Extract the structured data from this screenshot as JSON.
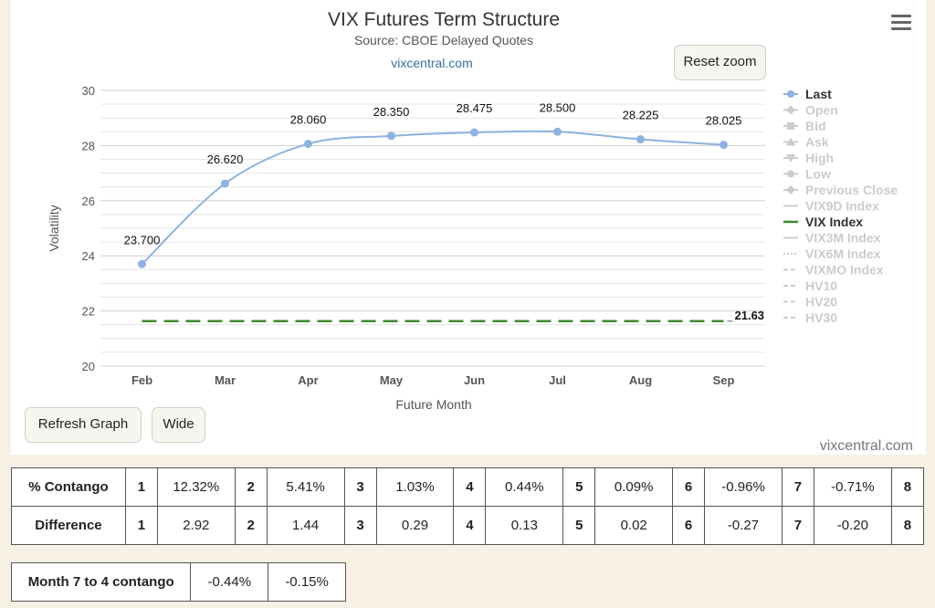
{
  "chart_data": {
    "type": "line",
    "title": "VIX Futures Term Structure",
    "subtitle": "Source: CBOE Delayed Quotes",
    "link": "vixcentral.com",
    "watermark": "vixcentral.com",
    "xlabel": "Future Month",
    "ylabel": "Volatility",
    "categories": [
      "Feb",
      "Mar",
      "Apr",
      "May",
      "Jun",
      "Jul",
      "Aug",
      "Sep"
    ],
    "ylim": [
      20,
      30
    ],
    "yticks": [
      "30",
      "28",
      "26",
      "24",
      "22",
      "20"
    ],
    "grid": true,
    "legend_position": "right",
    "series": [
      {
        "name": "Last",
        "values": [
          23.7,
          26.62,
          28.06,
          28.35,
          28.475,
          28.5,
          28.225,
          28.025
        ],
        "labels": [
          "23.700",
          "26.620",
          "28.060",
          "28.350",
          "28.475",
          "28.500",
          "28.225",
          "28.025"
        ],
        "color": "#8db3e0",
        "visible": true
      },
      {
        "name": "VIX Index",
        "values": [
          21.63,
          21.63,
          21.63,
          21.63,
          21.63,
          21.63,
          21.63,
          21.63
        ],
        "end_label": "21.63",
        "color": "#3e8a2e",
        "dash": "dashed",
        "visible": true
      }
    ],
    "legend": [
      {
        "name": "Last",
        "symbol": "circle",
        "active": true
      },
      {
        "name": "Open",
        "symbol": "diamond",
        "active": false
      },
      {
        "name": "Bid",
        "symbol": "square",
        "active": false
      },
      {
        "name": "Ask",
        "symbol": "triangle",
        "active": false
      },
      {
        "name": "High",
        "symbol": "triangle-down",
        "active": false
      },
      {
        "name": "Low",
        "symbol": "circle",
        "active": false
      },
      {
        "name": "Previous Close",
        "symbol": "diamond",
        "active": false
      },
      {
        "name": "VIX9D Index",
        "symbol": "solid",
        "active": false
      },
      {
        "name": "VIX Index",
        "symbol": "solid",
        "active": true
      },
      {
        "name": "VIX3M Index",
        "symbol": "solid",
        "active": false
      },
      {
        "name": "VIX6M Index",
        "symbol": "dotted",
        "active": false
      },
      {
        "name": "VIXMO Index",
        "symbol": "dashed",
        "active": false
      },
      {
        "name": "HV10",
        "symbol": "dashed",
        "active": false
      },
      {
        "name": "HV20",
        "symbol": "dashed",
        "active": false
      },
      {
        "name": "HV30",
        "symbol": "dashed",
        "active": false
      }
    ]
  },
  "controls": {
    "reset_zoom": "Reset zoom",
    "refresh_graph": "Refresh Graph",
    "wide": "Wide"
  },
  "contango_table": {
    "rows": [
      {
        "label": "% Contango",
        "cells": [
          [
            "1",
            "12.32%"
          ],
          [
            "2",
            "5.41%"
          ],
          [
            "3",
            "1.03%"
          ],
          [
            "4",
            "0.44%"
          ],
          [
            "5",
            "0.09%"
          ],
          [
            "6",
            "-0.96%"
          ],
          [
            "7",
            "-0.71%"
          ],
          [
            "8",
            ""
          ]
        ]
      },
      {
        "label": "Difference",
        "cells": [
          [
            "1",
            "2.92"
          ],
          [
            "2",
            "1.44"
          ],
          [
            "3",
            "0.29"
          ],
          [
            "4",
            "0.13"
          ],
          [
            "5",
            "0.02"
          ],
          [
            "6",
            "-0.27"
          ],
          [
            "7",
            "-0.20"
          ],
          [
            "8",
            ""
          ]
        ]
      }
    ]
  },
  "month_table": {
    "label": "Month 7 to 4 contango",
    "values": [
      "-0.44%",
      "-0.15%"
    ]
  }
}
